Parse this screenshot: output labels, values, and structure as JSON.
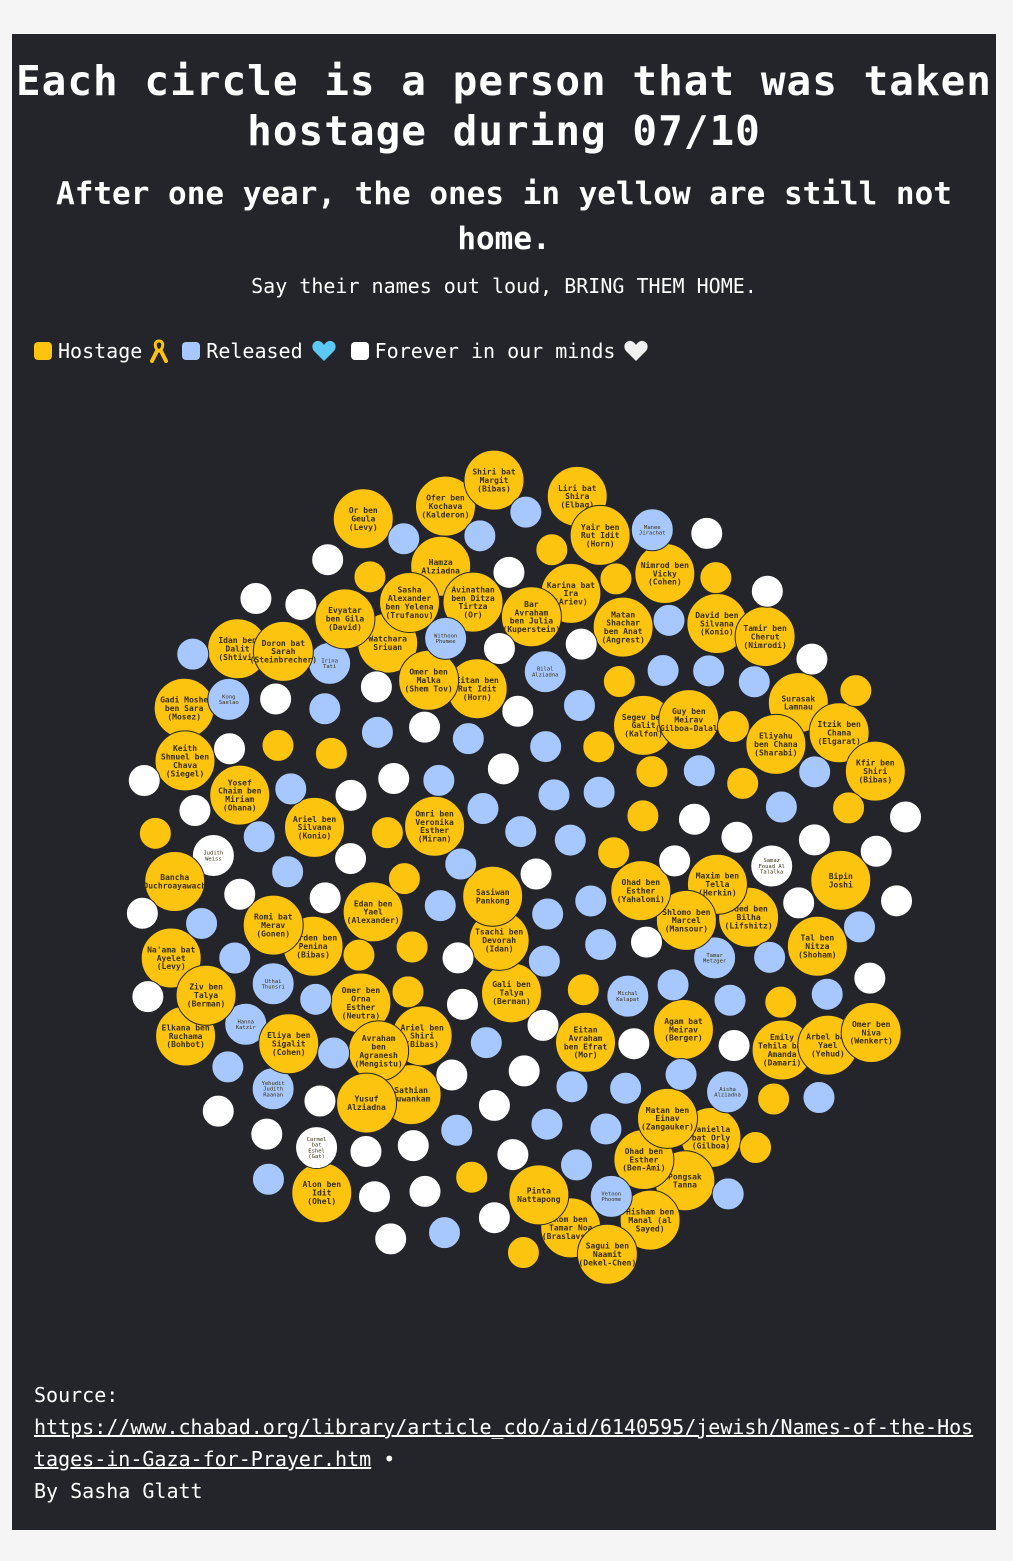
{
  "title": "Each circle is a person that was taken hostage during 07/10",
  "subtitle": "After one year, the ones in yellow are still not home.",
  "tagline": "Say their names out loud, BRING THEM HOME.",
  "legend": [
    {
      "label": "Hostage",
      "status": "hostage",
      "color": "#fcc30f",
      "icon": "yellow-ribbon-icon"
    },
    {
      "label": "Released",
      "status": "released",
      "color": "#a6c8ff",
      "icon": "light-blue-heart-icon"
    },
    {
      "label": "Forever in our minds",
      "status": "deceased",
      "color": "#ffffff",
      "icon": "white-heart-icon"
    }
  ],
  "source": {
    "label": "Source:",
    "url": "https://www.chabad.org/library/article_cdo/aid/6140595/jewish/Names-of-the-Hostages-in-Gaza-for-Prayer.htm",
    "byline": "By Sasha Glatt",
    "bullet": "•"
  },
  "colors": {
    "hostage": "#fcc30f",
    "released": "#a6c8ff",
    "deceased": "#ffffff",
    "background": "#24252a"
  },
  "chart_data": {
    "type": "bubble-pack",
    "people": [
      {
        "name": "Omer ben Orna Esther (Neutra)",
        "status": "hostage"
      },
      {
        "name": "Hanna Katzir",
        "status": "released"
      },
      {
        "name": "Rom ben Tamar Noa (Braslavski)",
        "status": "hostage"
      },
      {
        "name": "Yehudit Judith Raanan",
        "status": "released"
      },
      {
        "name": "Segev ben Galit (Kalfon)",
        "status": "hostage"
      },
      {
        "name": "Emily Tehila bat Amanda (Damari)",
        "status": "hostage"
      },
      {
        "name": "Eitan ben Rut Idit (Horn)",
        "status": "hostage"
      },
      {
        "name": "Yosef Chaim ben Miriam (Ohana)",
        "status": "hostage"
      },
      {
        "name": "Irina Tati",
        "status": "released"
      },
      {
        "name": "Yarden ben Penina (Bibas)",
        "status": "hostage"
      },
      {
        "name": "Surasak Lamnau",
        "status": "hostage"
      },
      {
        "name": "Oded ben Bilha (Lifshitz)",
        "status": "hostage"
      },
      {
        "name": "Tamar Metzger",
        "status": "released"
      },
      {
        "name": "Watchara Sriuan",
        "status": "hostage"
      },
      {
        "name": "Karina bat Ira (Ariev)",
        "status": "hostage"
      },
      {
        "name": "Eitan Avraham ben Efrat (Mor)",
        "status": "hostage"
      },
      {
        "name": "Daniella bat Orly (Gilboa)",
        "status": "hostage"
      },
      {
        "name": "Maxim ben Tella (Herkin)",
        "status": "hostage"
      },
      {
        "name": "Omri ben Veronika Esther (Miran)",
        "status": "hostage"
      },
      {
        "name": "Gali ben Talya (Berman)",
        "status": "hostage"
      },
      {
        "name": "Ofer ben Kochava (Kalderon)",
        "status": "hostage"
      },
      {
        "name": "Pongsak Tanna",
        "status": "hostage"
      },
      {
        "name": "Arbel bat Yael (Yehud)",
        "status": "hostage"
      },
      {
        "name": "Omer ben Niva (Wenkert)",
        "status": "hostage"
      },
      {
        "name": "Uthai Thunsri",
        "status": "released"
      },
      {
        "name": "Elkana ben Ruchama (Bohbot)",
        "status": "hostage"
      },
      {
        "name": "Hisham ben Manal (al Sayed)",
        "status": "hostage"
      },
      {
        "name": "Evyatar ben Gila (David)",
        "status": "hostage"
      },
      {
        "name": "Pinta Nattapong",
        "status": "hostage"
      },
      {
        "name": "Omer ben Malka (Shem Tov)",
        "status": "hostage"
      },
      {
        "name": "Hamza Alziadna",
        "status": "hostage"
      },
      {
        "name": "Sasha Alexander ben Yelena (Trufanov)",
        "status": "hostage"
      },
      {
        "name": "Itzik ben Chana (Elgarat)",
        "status": "hostage"
      },
      {
        "name": "Matan Shachar ben Anat (Angrest)",
        "status": "hostage"
      },
      {
        "name": "Liri bat Shira (Elbag)",
        "status": "hostage"
      },
      {
        "name": "Alon ben Idit (Ohel)",
        "status": "hostage"
      },
      {
        "name": "Gadi Moshe ben Sara (Mosez)",
        "status": "hostage"
      },
      {
        "name": "Kfir ben Shiri (Bibas)",
        "status": "hostage"
      },
      {
        "name": "Shlomo ben Marcel (Mansour)",
        "status": "hostage"
      },
      {
        "name": "Ariel ben Silvana (Konio)",
        "status": "hostage"
      },
      {
        "name": "Tal ben Nitza (Shoham)",
        "status": "hostage"
      },
      {
        "name": "Guy ben Meirav (Gilboa-Dalal)",
        "status": "hostage"
      },
      {
        "name": "Sathian Suwankam",
        "status": "hostage"
      },
      {
        "name": "Na'ama bat Ayelet (Levy)",
        "status": "hostage"
      },
      {
        "name": "Yair ben Rut Idit (Horn)",
        "status": "hostage"
      },
      {
        "name": "Ariel ben Shiri (Bibas)",
        "status": "hostage"
      },
      {
        "name": "Bipin Joshi",
        "status": "hostage"
      },
      {
        "name": "David ben Silvana (Konio)",
        "status": "hostage"
      },
      {
        "name": "Avraham ben Agranesh (Mengistu)",
        "status": "hostage"
      },
      {
        "name": "Nimrod ben Vicky (Cohen)",
        "status": "hostage"
      },
      {
        "name": "Ohad ben Esther (Ben-Ami)",
        "status": "hostage"
      },
      {
        "name": "Judith Weiss",
        "status": "deceased"
      },
      {
        "name": "Tsachi ben Devorah (Idan)",
        "status": "hostage"
      },
      {
        "name": "Tamir ben Cherut (Nimrodi)",
        "status": "hostage"
      },
      {
        "name": "Eliya ben Sigalit (Cohen)",
        "status": "hostage"
      },
      {
        "name": "Kong Saelao",
        "status": "released"
      },
      {
        "name": "Edan ben Yael (Alexander)",
        "status": "hostage"
      },
      {
        "name": "Ohad ben Esther (Yahalomi)",
        "status": "hostage"
      },
      {
        "name": "Shiri bat Margit (Bibas)",
        "status": "hostage"
      },
      {
        "name": "Bancha Duchroayawach",
        "status": "hostage"
      },
      {
        "name": "Sasiwan Pankong",
        "status": "hostage"
      },
      {
        "name": "Yusuf Alziadna",
        "status": "hostage"
      },
      {
        "name": "Romi bat Merav (Gonen)",
        "status": "hostage"
      },
      {
        "name": "Sagui ben Naamit (Dekel-Chen)",
        "status": "hostage"
      },
      {
        "name": "Agam bat Meirav (Berger)",
        "status": "hostage"
      },
      {
        "name": "Idan ben Dalit (Shtivi)",
        "status": "hostage"
      },
      {
        "name": "Matan ben Einav (Zangauker)",
        "status": "hostage"
      },
      {
        "name": "Or ben Geula (Levy)",
        "status": "hostage"
      },
      {
        "name": "Doron bat Sarah (Steinbrecher)",
        "status": "hostage"
      },
      {
        "name": "Bar Avraham ben Julia (Kuperstein)",
        "status": "hostage"
      },
      {
        "name": "Ziv ben Talya (Berman)",
        "status": "hostage"
      },
      {
        "name": "Keith Shmuel ben Chava (Siegel)",
        "status": "hostage"
      },
      {
        "name": "Avinathan ben Ditza Tirtza (Or)",
        "status": "hostage"
      },
      {
        "name": "Eliyahu ben Chana (Sharabi)",
        "status": "hostage"
      },
      {
        "name": "Aisha Alziadna",
        "status": "released"
      },
      {
        "name": "Bilal Alziadna",
        "status": "released"
      },
      {
        "name": "Withoon Phumee",
        "status": "released"
      },
      {
        "name": "Manee Jirachat",
        "status": "released"
      },
      {
        "name": "Michal Kalapat",
        "status": "released"
      },
      {
        "name": "Vetoon Phoome",
        "status": "released"
      },
      {
        "name": "Samaz Fouad Al Talalka",
        "status": "deceased"
      },
      {
        "name": "Carmel bat Eshel (Gat)",
        "status": "deceased"
      }
    ]
  }
}
